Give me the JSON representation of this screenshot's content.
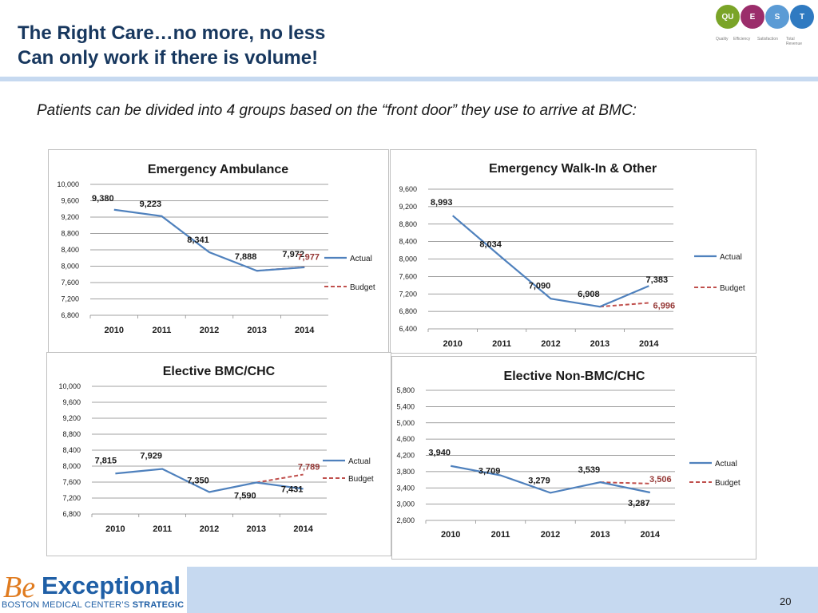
{
  "slide": {
    "title_line1": "The Right Care…no more, no less",
    "title_line2": "Can only work if there is volume!",
    "subtitle": "Patients can be divided into 4 groups based on the “front door” they use to arrive at BMC:",
    "page_number": "20"
  },
  "logo": {
    "letters": [
      "QU",
      "E",
      "S",
      "T"
    ],
    "colors": [
      "#7aa428",
      "#9b2d6b",
      "#5b9bd5",
      "#2f7ac1"
    ],
    "captions": [
      "Quality",
      "Efficiency",
      "Satisfaction",
      "Total Revenue"
    ]
  },
  "brand": {
    "be": "Be",
    "exceptional": "Exceptional",
    "sub_regular": "BOSTON MEDICAL CENTER’S ",
    "sub_bold": "STRATEGIC PLAN"
  },
  "colors": {
    "actual": "#4f81bd",
    "budget": "#c0504d",
    "budget_label": "#953735",
    "grid": "#808080"
  },
  "chart_data": [
    {
      "type": "line",
      "title": "Emergency Ambulance",
      "categories": [
        "2010",
        "2011",
        "2012",
        "2013",
        "2014"
      ],
      "ylim": [
        6800,
        10000
      ],
      "yticks": [
        "6,800",
        "7,200",
        "7,600",
        "8,000",
        "8,400",
        "8,800",
        "9,200",
        "9,600",
        "10,000"
      ],
      "legend": [
        "Actual",
        "Budget"
      ],
      "series": [
        {
          "name": "Actual",
          "values": [
            9380,
            9223,
            8341,
            7888,
            7972
          ]
        },
        {
          "name": "Budget",
          "x": [
            "2013",
            "2014"
          ],
          "values": [
            7888,
            7977
          ]
        }
      ],
      "labels_actual": [
        "9,380",
        "9,223",
        "8,341",
        "7,888",
        "7,972"
      ],
      "label_budget": "7,977"
    },
    {
      "type": "line",
      "title": "Emergency Walk-In & Other",
      "categories": [
        "2010",
        "2011",
        "2012",
        "2013",
        "2014"
      ],
      "ylim": [
        6400,
        9600
      ],
      "yticks": [
        "6,400",
        "6,800",
        "7,200",
        "7,600",
        "8,000",
        "8,400",
        "8,800",
        "9,200",
        "9,600"
      ],
      "legend": [
        "Actual",
        "Budget"
      ],
      "series": [
        {
          "name": "Actual",
          "values": [
            8993,
            8034,
            7090,
            6908,
            7383
          ]
        },
        {
          "name": "Budget",
          "x": [
            "2013",
            "2014"
          ],
          "values": [
            6908,
            6996
          ]
        }
      ],
      "labels_actual": [
        "8,993",
        "8,034",
        "7,090",
        "6,908",
        "7,383"
      ],
      "label_budget": "6,996"
    },
    {
      "type": "line",
      "title": "Elective BMC/CHC",
      "categories": [
        "2010",
        "2011",
        "2012",
        "2013",
        "2014"
      ],
      "ylim": [
        6800,
        10000
      ],
      "yticks": [
        "6,800",
        "7,200",
        "7,600",
        "8,000",
        "8,400",
        "8,800",
        "9,200",
        "9,600",
        "10,000"
      ],
      "legend": [
        "Actual",
        "Budget"
      ],
      "series": [
        {
          "name": "Actual",
          "values": [
            7815,
            7929,
            7350,
            7590,
            7431
          ]
        },
        {
          "name": "Budget",
          "x": [
            "2013",
            "2014"
          ],
          "values": [
            7590,
            7789
          ]
        }
      ],
      "labels_actual": [
        "7,815",
        "7,929",
        "7,350",
        "7,590",
        "7,431"
      ],
      "label_budget": "7,789"
    },
    {
      "type": "line",
      "title": "Elective Non-BMC/CHC",
      "categories": [
        "2010",
        "2011",
        "2012",
        "2013",
        "2014"
      ],
      "ylim": [
        2600,
        5800
      ],
      "yticks": [
        "2,600",
        "3,000",
        "3,400",
        "3,800",
        "4,200",
        "4,600",
        "5,000",
        "5,400",
        "5,800"
      ],
      "legend": [
        "Actual",
        "Budget"
      ],
      "series": [
        {
          "name": "Actual",
          "values": [
            3940,
            3709,
            3279,
            3539,
            3287
          ]
        },
        {
          "name": "Budget",
          "x": [
            "2013",
            "2014"
          ],
          "values": [
            3539,
            3506
          ]
        }
      ],
      "labels_actual": [
        "3,940",
        "3,709",
        "3,279",
        "3,539",
        "3,287"
      ],
      "label_budget": "3,506"
    }
  ]
}
